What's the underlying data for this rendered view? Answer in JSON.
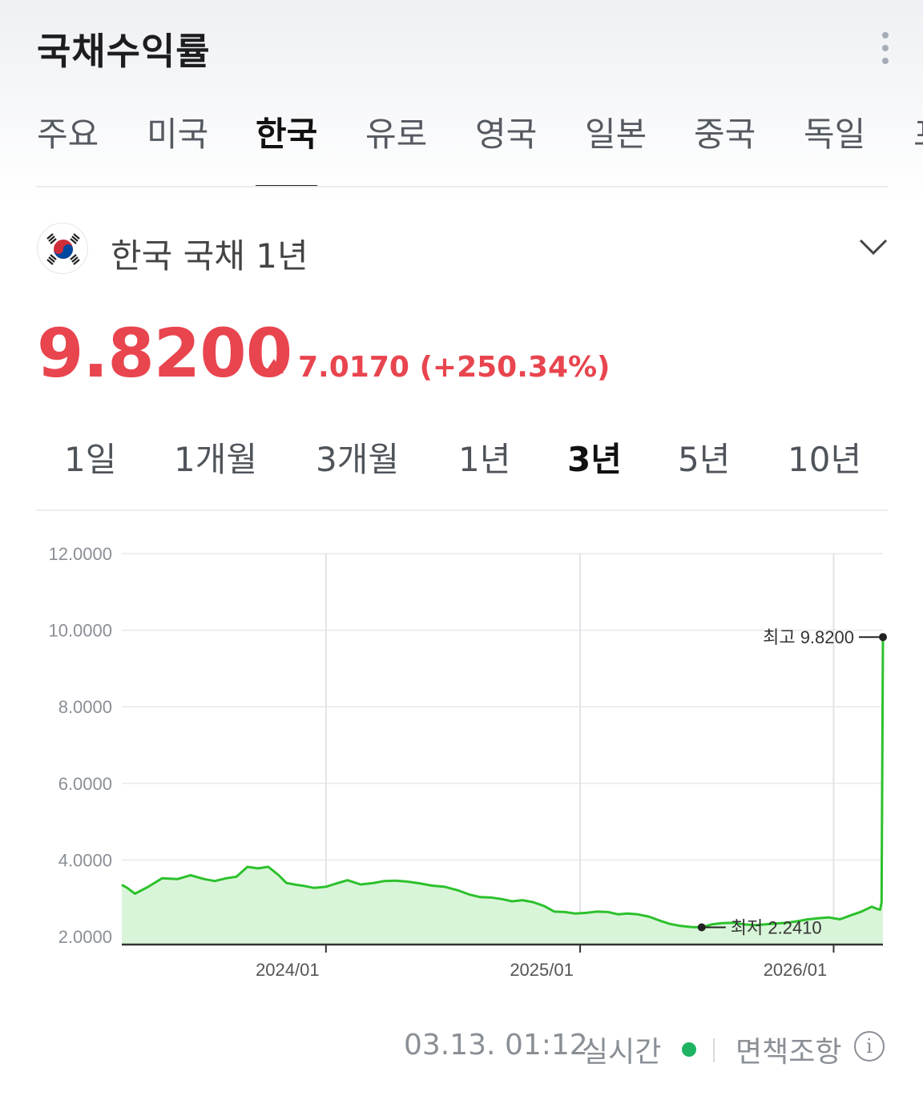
{
  "header": {
    "title": "국채수익률",
    "more_icon": "more-vertical-icon"
  },
  "tabs": [
    {
      "label": "주요",
      "active": false
    },
    {
      "label": "미국",
      "active": false
    },
    {
      "label": "한국",
      "active": true
    },
    {
      "label": "유로",
      "active": false
    },
    {
      "label": "영국",
      "active": false
    },
    {
      "label": "일본",
      "active": false
    },
    {
      "label": "중국",
      "active": false
    },
    {
      "label": "독일",
      "active": false
    },
    {
      "label": "프",
      "active": false
    }
  ],
  "bond": {
    "name": "한국 국채 1년",
    "flag_icon": "korea-flag-icon",
    "dropdown_icon": "chevron-down-icon"
  },
  "quote": {
    "price": "9.8200",
    "change": "7.0170 (+250.34%)",
    "direction": "up",
    "color": "#e8454f"
  },
  "periods": [
    {
      "label": "1일",
      "active": false
    },
    {
      "label": "1개월",
      "active": false
    },
    {
      "label": "3개월",
      "active": false
    },
    {
      "label": "1년",
      "active": false
    },
    {
      "label": "3년",
      "active": true
    },
    {
      "label": "5년",
      "active": false
    },
    {
      "label": "10년",
      "active": false
    }
  ],
  "chart_data": {
    "type": "area",
    "line_color": "#2cc12c",
    "fill_color": "#d9f5d9",
    "ylim": [
      2.0,
      12.0
    ],
    "y_ticks": [
      "12.0000",
      "10.0000",
      "8.0000",
      "6.0000",
      "4.0000",
      "2.0000"
    ],
    "x_ticks": [
      "2024/01",
      "2025/01",
      "2026/01"
    ],
    "grid": true,
    "series": [
      {
        "x": [
          "2023-03-13",
          "2023-03-20",
          "2023-04-01",
          "2023-04-20",
          "2023-05-10",
          "2023-06-01",
          "2023-06-20",
          "2023-07-10",
          "2023-07-25",
          "2023-08-10",
          "2023-08-25",
          "2023-09-10",
          "2023-09-25",
          "2023-10-10",
          "2023-10-25",
          "2023-11-05",
          "2023-11-20",
          "2023-12-01",
          "2023-12-15",
          "2024-01-01",
          "2024-01-15",
          "2024-02-01",
          "2024-02-20",
          "2024-03-10",
          "2024-03-25",
          "2024-04-10",
          "2024-04-25",
          "2024-05-15",
          "2024-06-01",
          "2024-06-20",
          "2024-07-10",
          "2024-07-25",
          "2024-08-10",
          "2024-08-25",
          "2024-09-10",
          "2024-09-25",
          "2024-10-10",
          "2024-10-25",
          "2024-11-10",
          "2024-11-25",
          "2024-12-10",
          "2024-12-25",
          "2025-01-10",
          "2025-01-25",
          "2025-02-10",
          "2025-02-25",
          "2025-03-10",
          "2025-03-25",
          "2025-04-10",
          "2025-04-25",
          "2025-05-10",
          "2025-05-25",
          "2025-06-10",
          "2025-06-25",
          "2025-07-10",
          "2025-07-25",
          "2025-08-10",
          "2025-08-25",
          "2025-09-10",
          "2025-09-25",
          "2025-10-10",
          "2025-10-25",
          "2025-11-10",
          "2025-11-25",
          "2025-12-10",
          "2025-12-25",
          "2026-01-10",
          "2026-01-25",
          "2026-02-10",
          "2026-02-25",
          "2026-03-05",
          "2026-03-09",
          "2026-03-11",
          "2026-03-13"
        ],
        "values": [
          3.35,
          3.28,
          3.12,
          3.3,
          3.52,
          3.5,
          3.6,
          3.5,
          3.45,
          3.52,
          3.56,
          3.82,
          3.78,
          3.82,
          3.6,
          3.4,
          3.35,
          3.32,
          3.27,
          3.3,
          3.38,
          3.47,
          3.36,
          3.4,
          3.45,
          3.46,
          3.44,
          3.39,
          3.33,
          3.3,
          3.2,
          3.1,
          3.03,
          3.02,
          2.98,
          2.92,
          2.95,
          2.9,
          2.8,
          2.65,
          2.64,
          2.6,
          2.62,
          2.65,
          2.64,
          2.58,
          2.6,
          2.58,
          2.52,
          2.42,
          2.33,
          2.28,
          2.25,
          2.241,
          2.32,
          2.35,
          2.36,
          2.32,
          2.3,
          2.32,
          2.34,
          2.36,
          2.4,
          2.45,
          2.48,
          2.5,
          2.45,
          2.55,
          2.65,
          2.78,
          2.72,
          2.7,
          2.9,
          9.82
        ]
      }
    ],
    "annotations": [
      {
        "label": "최고 9.8200",
        "x": "2026-03-13",
        "y": 9.82
      },
      {
        "label": "최저 2.2410",
        "x": "2025-06-25",
        "y": 2.241
      }
    ]
  },
  "footer": {
    "timestamp": "03.13. 01:12",
    "live_label": "실시간",
    "live_color": "#1eb463",
    "disclaimer": "면책조항",
    "info_icon": "info-icon",
    "info_glyph": "i"
  }
}
